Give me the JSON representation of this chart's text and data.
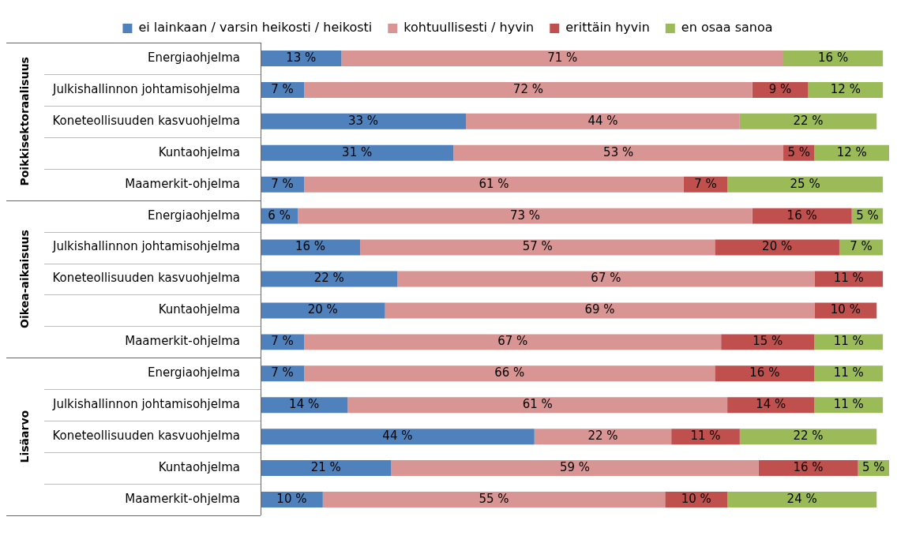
{
  "chart_data": {
    "type": "bar",
    "orientation": "horizontal",
    "stacked": true,
    "legend": "top",
    "grid": false,
    "tick_labels": "y",
    "categories": [
      "Energiaohjelma",
      "Julkishallinnon johtamisohjelma",
      "Koneteollisuuden kasvuohjelma",
      "Kuntaohjelma",
      "Maamerkit-ohjelma",
      "Energiaohjelma",
      "Julkishallinnon johtamisohjelma",
      "Koneteollisuuden kasvuohjelma",
      "Kuntaohjelma",
      "Maamerkit-ohjelma",
      "Energiaohjelma",
      "Julkishallinnon johtamisohjelma",
      "Koneteollisuuden kasvuohjelma",
      "Kuntaohjelma",
      "Maamerkit-ohjelma"
    ],
    "annotations": [
      "Poikkisektoraalisuus",
      "Oikea-aikaisuus",
      "Lisäarvo"
    ],
    "series": [
      {
        "name": "ei lainkaan / varsin heikosti / heikosti",
        "color": "#4f81bd",
        "values": [
          13,
          7,
          33,
          31,
          7,
          6,
          16,
          22,
          20,
          7,
          7,
          14,
          44,
          21,
          10
        ],
        "value_labels": [
          "13 %",
          "7 %",
          "33 %",
          "31 %",
          "7 %",
          "6 %",
          "16 %",
          "22 %",
          "20 %",
          "7 %",
          "7 %",
          "14 %",
          "44 %",
          "21 %",
          "10 %"
        ]
      },
      {
        "name": "kohtuullisesti / hyvin",
        "color": "#d99594",
        "values": [
          71,
          72,
          44,
          53,
          61,
          73,
          57,
          67,
          69,
          67,
          66,
          61,
          22,
          59,
          55
        ],
        "value_labels": [
          "71 %",
          "72 %",
          "44 %",
          "53 %",
          "61 %",
          "73 %",
          "57 %",
          "67 %",
          "69 %",
          "67 %",
          "66 %",
          "61 %",
          "22 %",
          "59 %",
          "55 %"
        ]
      },
      {
        "name": "erittäin hyvin",
        "color": "#c0504d",
        "values": [
          null,
          9,
          null,
          5,
          7,
          16,
          20,
          11,
          10,
          15,
          16,
          14,
          11,
          16,
          10
        ],
        "value_labels": [
          null,
          "9 %",
          null,
          "5 %",
          "7 %",
          "16 %",
          "20 %",
          "11 %",
          "10 %",
          "15 %",
          "16 %",
          "14 %",
          "11 %",
          "16 %",
          "10 %"
        ]
      },
      {
        "name": "en osaa sanoa",
        "color": "#9bbb59",
        "values": [
          16,
          12,
          22,
          12,
          25,
          5,
          7,
          null,
          null,
          11,
          11,
          11,
          22,
          5,
          24
        ],
        "value_labels": [
          "16 %",
          "12 %",
          "22 %",
          "12 %",
          "25 %",
          "5 %",
          "7 %",
          null,
          null,
          "11 %",
          "11 %",
          "11 %",
          "22 %",
          "5 %",
          "24 %"
        ]
      }
    ]
  }
}
